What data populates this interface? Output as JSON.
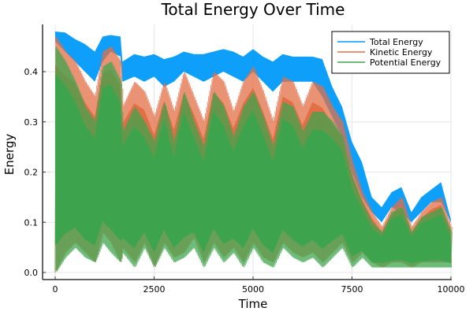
{
  "chart_data": {
    "type": "line",
    "title": "Total Energy Over Time",
    "xlabel": "Time",
    "ylabel": "Energy",
    "xlim": [
      -300,
      10300
    ],
    "ylim": [
      -0.012,
      0.487
    ],
    "xticks": [
      0,
      2500,
      5000,
      7500,
      10000
    ],
    "xtick_labels": [
      "0",
      "2500",
      "5000",
      "7500",
      "10000"
    ],
    "yticks": [
      0.0,
      0.1,
      0.2,
      0.3,
      0.4
    ],
    "ytick_labels": [
      "0.0",
      "0.1",
      "0.2",
      "0.3",
      "0.4"
    ],
    "grid": true,
    "legend_position": "top-right",
    "envelope_x": [
      0,
      250,
      500,
      750,
      1000,
      1200,
      1400,
      1650,
      1700,
      2000,
      2250,
      2500,
      2750,
      3000,
      3250,
      3500,
      3750,
      4000,
      4250,
      4500,
      4750,
      5000,
      5250,
      5500,
      5750,
      6000,
      6250,
      6500,
      6750,
      7000,
      7250,
      7500,
      7750,
      8000,
      8250,
      8500,
      8750,
      9000,
      9250,
      9500,
      9750,
      10000
    ],
    "series": [
      {
        "name": "Total Energy",
        "color": "#009af9",
        "upper": [
          0.48,
          0.478,
          0.465,
          0.455,
          0.44,
          0.47,
          0.473,
          0.47,
          0.42,
          0.435,
          0.43,
          0.435,
          0.425,
          0.43,
          0.44,
          0.435,
          0.435,
          0.44,
          0.445,
          0.44,
          0.43,
          0.445,
          0.43,
          0.42,
          0.435,
          0.43,
          0.43,
          0.43,
          0.425,
          0.37,
          0.33,
          0.26,
          0.22,
          0.15,
          0.13,
          0.16,
          0.17,
          0.12,
          0.15,
          0.165,
          0.18,
          0.105
        ],
        "lower": [
          0.46,
          0.44,
          0.42,
          0.4,
          0.38,
          0.42,
          0.44,
          0.43,
          0.38,
          0.39,
          0.38,
          0.39,
          0.37,
          0.38,
          0.4,
          0.39,
          0.38,
          0.39,
          0.4,
          0.39,
          0.38,
          0.4,
          0.38,
          0.36,
          0.38,
          0.38,
          0.38,
          0.38,
          0.35,
          0.31,
          0.27,
          0.2,
          0.15,
          0.12,
          0.1,
          0.13,
          0.12,
          0.1,
          0.12,
          0.14,
          0.14,
          0.1
        ]
      },
      {
        "name": "Kinetic Energy",
        "color": "#e26f46",
        "upper": [
          0.47,
          0.44,
          0.42,
          0.38,
          0.35,
          0.44,
          0.45,
          0.42,
          0.33,
          0.38,
          0.36,
          0.31,
          0.38,
          0.32,
          0.4,
          0.35,
          0.3,
          0.4,
          0.38,
          0.32,
          0.38,
          0.41,
          0.36,
          0.3,
          0.39,
          0.38,
          0.33,
          0.38,
          0.37,
          0.33,
          0.3,
          0.22,
          0.16,
          0.12,
          0.09,
          0.13,
          0.15,
          0.09,
          0.12,
          0.14,
          0.15,
          0.09
        ],
        "lower": [
          0.0,
          0.04,
          0.06,
          0.04,
          0.02,
          0.08,
          0.06,
          0.02,
          0.05,
          0.02,
          0.06,
          0.01,
          0.06,
          0.03,
          0.04,
          0.07,
          0.02,
          0.06,
          0.03,
          0.05,
          0.02,
          0.06,
          0.03,
          0.02,
          0.06,
          0.04,
          0.03,
          0.04,
          0.02,
          0.04,
          0.06,
          0.02,
          0.04,
          0.02,
          0.01,
          0.02,
          0.02,
          0.01,
          0.02,
          0.02,
          0.02,
          0.02
        ]
      },
      {
        "name": "Potential Energy",
        "color": "#3da44d",
        "upper": [
          0.45,
          0.42,
          0.38,
          0.33,
          0.3,
          0.41,
          0.42,
          0.38,
          0.28,
          0.33,
          0.3,
          0.26,
          0.34,
          0.26,
          0.36,
          0.3,
          0.25,
          0.36,
          0.33,
          0.27,
          0.33,
          0.36,
          0.31,
          0.25,
          0.34,
          0.33,
          0.28,
          0.32,
          0.32,
          0.3,
          0.27,
          0.19,
          0.14,
          0.1,
          0.08,
          0.12,
          0.13,
          0.08,
          0.11,
          0.12,
          0.13,
          0.08
        ],
        "lower": [
          0.0,
          0.03,
          0.05,
          0.03,
          0.02,
          0.06,
          0.04,
          0.02,
          0.04,
          0.01,
          0.05,
          0.01,
          0.05,
          0.02,
          0.03,
          0.05,
          0.01,
          0.05,
          0.02,
          0.04,
          0.01,
          0.05,
          0.02,
          0.01,
          0.05,
          0.03,
          0.02,
          0.03,
          0.01,
          0.03,
          0.05,
          0.01,
          0.03,
          0.01,
          0.01,
          0.01,
          0.01,
          0.01,
          0.01,
          0.01,
          0.01,
          0.01
        ]
      }
    ]
  }
}
